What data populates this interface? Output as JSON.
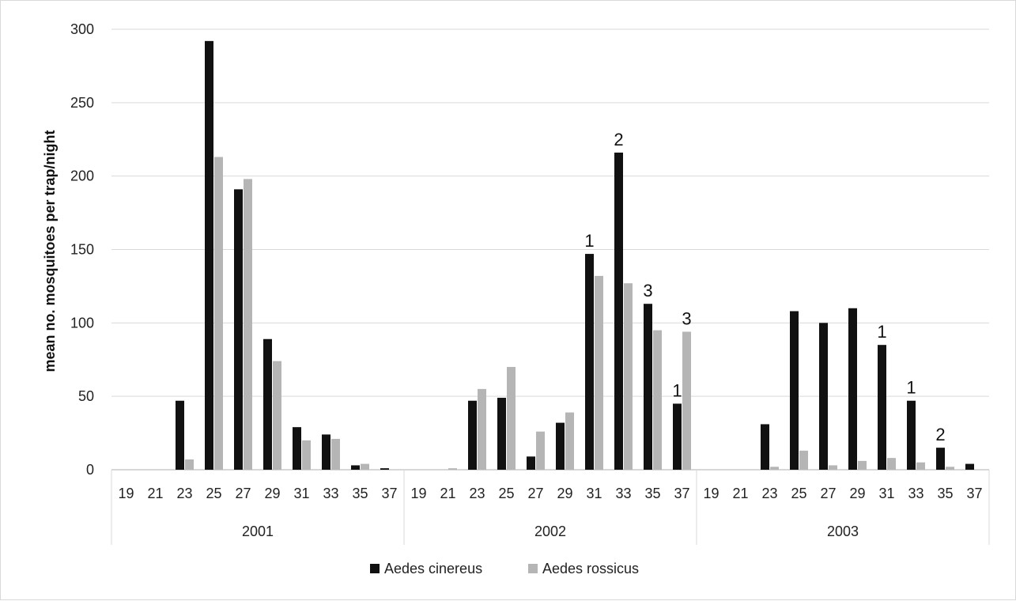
{
  "chart_data": {
    "type": "bar",
    "title": "",
    "ylabel": "mean no. mosquitoes per trap/night",
    "xlabel": "",
    "ylim": [
      0,
      300
    ],
    "yticks": [
      0,
      50,
      100,
      150,
      200,
      250,
      300
    ],
    "grid": true,
    "legend_position": "bottom",
    "groups": [
      {
        "label": "2001",
        "categories": [
          "19",
          "21",
          "23",
          "25",
          "27",
          "29",
          "31",
          "33",
          "35",
          "37"
        ]
      },
      {
        "label": "2002",
        "categories": [
          "19",
          "21",
          "23",
          "25",
          "27",
          "29",
          "31",
          "33",
          "35",
          "37"
        ]
      },
      {
        "label": "2003",
        "categories": [
          "19",
          "21",
          "23",
          "25",
          "27",
          "29",
          "31",
          "33",
          "35",
          "37"
        ]
      }
    ],
    "series": [
      {
        "name": "Aedes cinereus",
        "color": "#111111",
        "values": [
          [
            0,
            0,
            47,
            292,
            191,
            89,
            29,
            24,
            3,
            1
          ],
          [
            0,
            0,
            47,
            49,
            9,
            32,
            147,
            216,
            113,
            45
          ],
          [
            0,
            0,
            31,
            108,
            100,
            110,
            85,
            47,
            15,
            4
          ]
        ]
      },
      {
        "name": "Aedes rossicus",
        "color": "#b5b5b5",
        "values": [
          [
            0,
            0,
            7,
            213,
            198,
            74,
            20,
            21,
            4,
            0
          ],
          [
            0,
            1,
            55,
            70,
            26,
            39,
            132,
            127,
            95,
            94
          ],
          [
            0,
            0,
            2,
            13,
            3,
            6,
            8,
            5,
            2,
            0
          ]
        ]
      }
    ],
    "annotations": [
      {
        "group": 1,
        "category": "31",
        "series": 0,
        "text": "1"
      },
      {
        "group": 1,
        "category": "33",
        "series": 0,
        "text": "2"
      },
      {
        "group": 1,
        "category": "35",
        "series": 0,
        "text": "3"
      },
      {
        "group": 1,
        "category": "37",
        "series": 0,
        "text": "1"
      },
      {
        "group": 1,
        "category": "37",
        "series": 1,
        "text": "3"
      },
      {
        "group": 2,
        "category": "31",
        "series": 0,
        "text": "1"
      },
      {
        "group": 2,
        "category": "33",
        "series": 0,
        "text": "1"
      },
      {
        "group": 2,
        "category": "35",
        "series": 0,
        "text": "2"
      }
    ]
  }
}
